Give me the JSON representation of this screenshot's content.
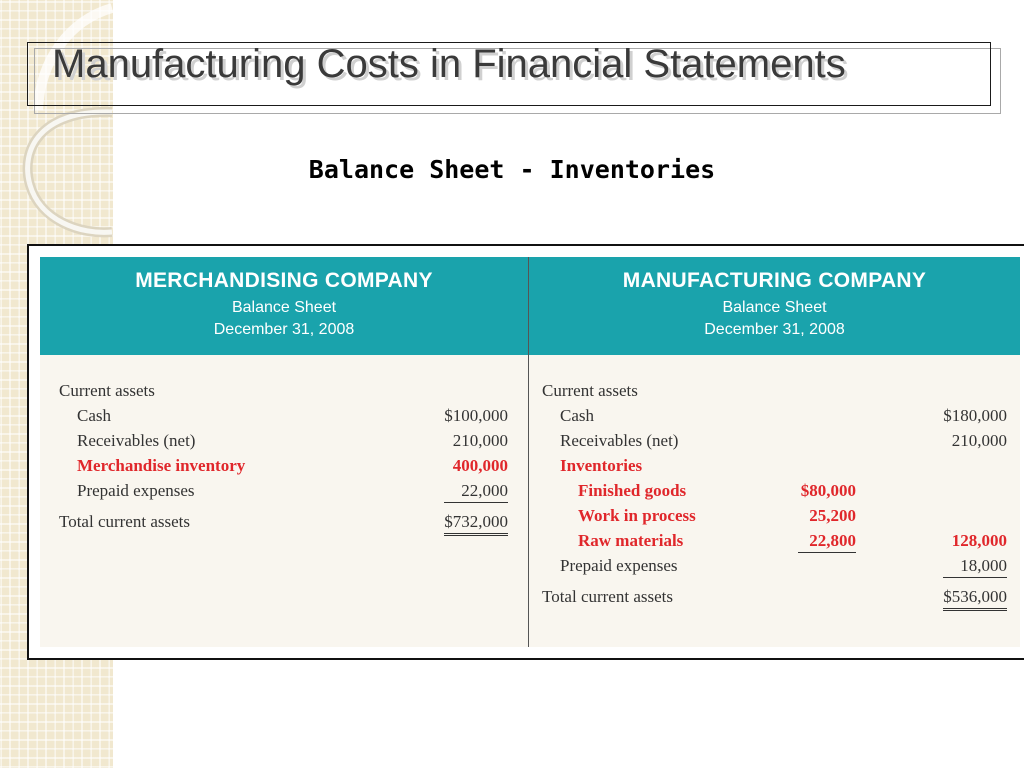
{
  "slide": {
    "title": "Manufacturing Costs in Financial Statements",
    "subtitle": "Balance Sheet - Inventories"
  },
  "merchandising": {
    "company": "MERCHANDISING COMPANY",
    "statement": "Balance Sheet",
    "date": "December 31, 2008",
    "section": "Current assets",
    "items": [
      {
        "label": "Cash",
        "amount": "$100,000"
      },
      {
        "label": "Receivables (net)",
        "amount": "210,000"
      },
      {
        "label": "Merchandise inventory",
        "amount": "400,000"
      },
      {
        "label": "Prepaid expenses",
        "amount": "22,000"
      }
    ],
    "total": {
      "label": "Total current assets",
      "amount": "$732,000"
    }
  },
  "manufacturing": {
    "company": "MANUFACTURING COMPANY",
    "statement": "Balance Sheet",
    "date": "December 31, 2008",
    "section": "Current assets",
    "cash": {
      "label": "Cash",
      "amount": "$180,000"
    },
    "receivables": {
      "label": "Receivables (net)",
      "amount": "210,000"
    },
    "inventories": {
      "label": "Inventories",
      "items": [
        {
          "label": "Finished goods",
          "amount": "$80,000"
        },
        {
          "label": "Work in process",
          "amount": "25,200"
        },
        {
          "label": "Raw materials",
          "amount": "22,800"
        }
      ],
      "total": "128,000"
    },
    "prepaid": {
      "label": "Prepaid expenses",
      "amount": "18,000"
    },
    "total": {
      "label": "Total current assets",
      "amount": "$536,000"
    }
  },
  "colors": {
    "header_teal": "#1aa3ac",
    "highlight_red": "#e0272b",
    "plaid_beige": "#f1e8cf"
  }
}
